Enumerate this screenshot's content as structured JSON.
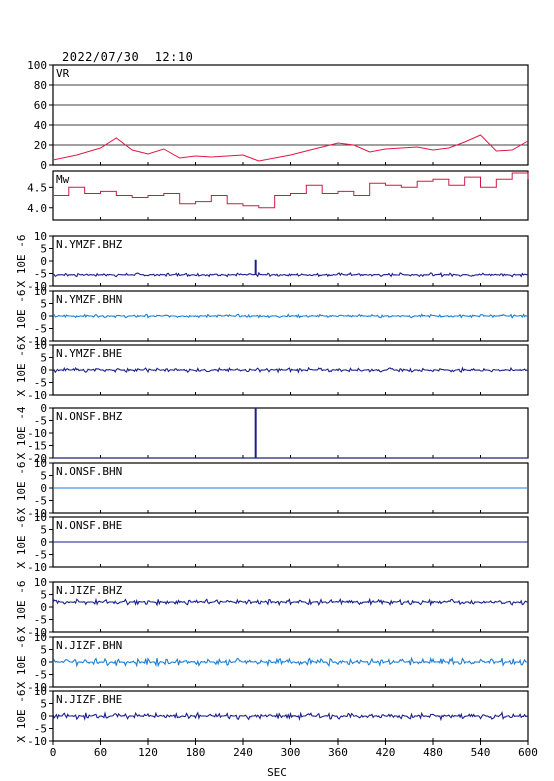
{
  "header": {
    "timestamp": "2022/07/30  12:10"
  },
  "colors": {
    "vr": "#e01845",
    "mw": "#d01845",
    "dark": "#1a1f8c",
    "light": "#1c7fd4",
    "frame": "#000000"
  },
  "x_axis": {
    "label": "SEC",
    "ticks": [
      "0",
      "60",
      "120",
      "180",
      "240",
      "300",
      "360",
      "420",
      "480",
      "540",
      "600"
    ]
  },
  "chart_data": [
    {
      "type": "line",
      "id": "vr",
      "title": "VR",
      "xlim": [
        0,
        600
      ],
      "ylim": [
        0,
        100
      ],
      "yticks": [
        "100",
        "80",
        "60",
        "40",
        "20",
        "0"
      ],
      "grid": true,
      "x": [
        0,
        30,
        60,
        80,
        100,
        120,
        140,
        160,
        180,
        200,
        220,
        240,
        260,
        280,
        300,
        320,
        340,
        360,
        380,
        400,
        420,
        440,
        460,
        480,
        500,
        520,
        540,
        560,
        580,
        600
      ],
      "values": [
        5,
        10,
        17,
        27,
        15,
        11,
        16,
        7,
        9,
        8,
        9,
        10,
        4,
        7,
        10,
        14,
        18,
        22,
        20,
        13,
        16,
        17,
        18,
        15,
        17,
        23,
        30,
        14,
        15,
        24
      ]
    },
    {
      "type": "line",
      "id": "mw",
      "title": "Mw",
      "xlim": [
        0,
        600
      ],
      "ylim": [
        3.7,
        4.9
      ],
      "yticks": [
        "4.5",
        "4.0"
      ],
      "grid": false,
      "x": [
        0,
        20,
        40,
        60,
        80,
        100,
        120,
        140,
        160,
        180,
        200,
        220,
        240,
        260,
        280,
        300,
        320,
        340,
        360,
        380,
        400,
        420,
        440,
        460,
        480,
        500,
        520,
        540,
        560,
        580,
        600
      ],
      "values": [
        4.3,
        4.5,
        4.35,
        4.4,
        4.3,
        4.25,
        4.3,
        4.35,
        4.1,
        4.15,
        4.3,
        4.1,
        4.05,
        4.0,
        4.3,
        4.35,
        4.55,
        4.35,
        4.4,
        4.3,
        4.6,
        4.55,
        4.5,
        4.65,
        4.7,
        4.55,
        4.75,
        4.5,
        4.7,
        4.85,
        4.7
      ]
    },
    {
      "type": "line",
      "id": "ymzf-bhz",
      "title": "N.YMZF.BHZ",
      "ylabel": "X 10E -6",
      "xlim": [
        0,
        600
      ],
      "ylim": [
        -10,
        10
      ],
      "yticks": [
        "10",
        "5",
        "0",
        "-5",
        "-10"
      ],
      "color_key": "dark",
      "baseline": -5.5,
      "noise": 0.4,
      "spike": {
        "x": 256,
        "peak": 0.5
      }
    },
    {
      "type": "line",
      "id": "ymzf-bhn",
      "title": "N.YMZF.BHN",
      "ylabel": "X 10E -6",
      "xlim": [
        0,
        600
      ],
      "ylim": [
        -10,
        10
      ],
      "yticks": [
        "10",
        "5",
        "0",
        "-5",
        "-10"
      ],
      "color_key": "light",
      "baseline": 0.0,
      "noise": 0.35,
      "spike": null
    },
    {
      "type": "line",
      "id": "ymzf-bhe",
      "title": "N.YMZF.BHE",
      "ylabel": "X 10E -6",
      "xlim": [
        0,
        600
      ],
      "ylim": [
        -10,
        10
      ],
      "yticks": [
        "10",
        "5",
        "0",
        "-5",
        "-10"
      ],
      "color_key": "dark",
      "baseline": 0.0,
      "noise": 0.45,
      "spike": null
    },
    {
      "type": "line",
      "id": "onsf-bhz",
      "title": "N.ONSF.BHZ",
      "ylabel": "X 10E -4",
      "xlim": [
        0,
        600
      ],
      "ylim": [
        -20,
        0
      ],
      "yticks": [
        "0",
        "-5",
        "-10",
        "-15",
        "-20"
      ],
      "color_key": "dark",
      "baseline": -20,
      "noise": 0.0,
      "spike": {
        "x": 256,
        "peak": 0
      }
    },
    {
      "type": "line",
      "id": "onsf-bhn",
      "title": "N.ONSF.BHN",
      "ylabel": "X 10E -6",
      "xlim": [
        0,
        600
      ],
      "ylim": [
        -10,
        10
      ],
      "yticks": [
        "10",
        "5",
        "0",
        "-5",
        "-10"
      ],
      "color_key": "light",
      "baseline": 0.0,
      "noise": 0.0,
      "spike": null
    },
    {
      "type": "line",
      "id": "onsf-bhe",
      "title": "N.ONSF.BHE",
      "ylabel": "X 10E -6",
      "xlim": [
        0,
        600
      ],
      "ylim": [
        -10,
        10
      ],
      "yticks": [
        "10",
        "5",
        "0",
        "-5",
        "-10"
      ],
      "color_key": "dark",
      "baseline": 0.0,
      "noise": 0.0,
      "spike": null
    },
    {
      "type": "line",
      "id": "jizf-bhz",
      "title": "N.JIZF.BHZ",
      "ylabel": "X 10E -6",
      "xlim": [
        0,
        600
      ],
      "ylim": [
        -10,
        10
      ],
      "yticks": [
        "10",
        "5",
        "0",
        "-5",
        "-10"
      ],
      "color_key": "dark",
      "baseline": 2.0,
      "noise": 0.6,
      "spike": null
    },
    {
      "type": "line",
      "id": "jizf-bhn",
      "title": "N.JIZF.BHN",
      "ylabel": "X 10E -6",
      "xlim": [
        0,
        600
      ],
      "ylim": [
        -10,
        10
      ],
      "yticks": [
        "10",
        "5",
        "0",
        "-5",
        "-10"
      ],
      "color_key": "light",
      "baseline": 0.0,
      "noise": 0.8,
      "spike": null
    },
    {
      "type": "line",
      "id": "jizf-bhe",
      "title": "N.JIZF.BHE",
      "ylabel": "X 10E -6",
      "xlim": [
        0,
        600
      ],
      "ylim": [
        -10,
        10
      ],
      "yticks": [
        "10",
        "5",
        "0",
        "-5",
        "-10"
      ],
      "color_key": "dark",
      "baseline": 0.0,
      "noise": 0.7,
      "spike": null
    }
  ]
}
